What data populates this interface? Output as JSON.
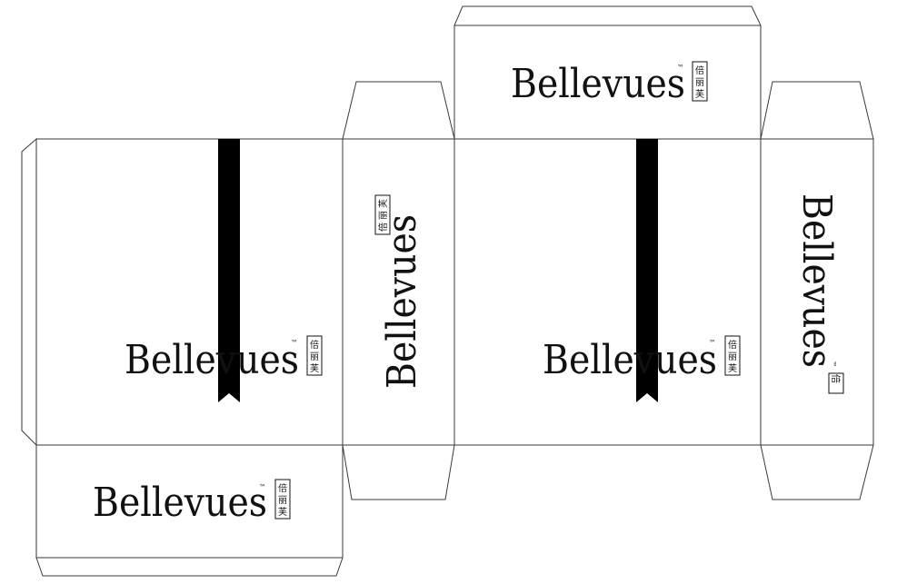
{
  "brand": {
    "name": "Bellevues",
    "trademark": "™",
    "chinese": [
      "倍",
      "丽",
      "芙"
    ]
  },
  "colors": {
    "line": "#3a3a3a",
    "ink": "#111111",
    "ribbon": "#000000",
    "background": "#ffffff"
  }
}
